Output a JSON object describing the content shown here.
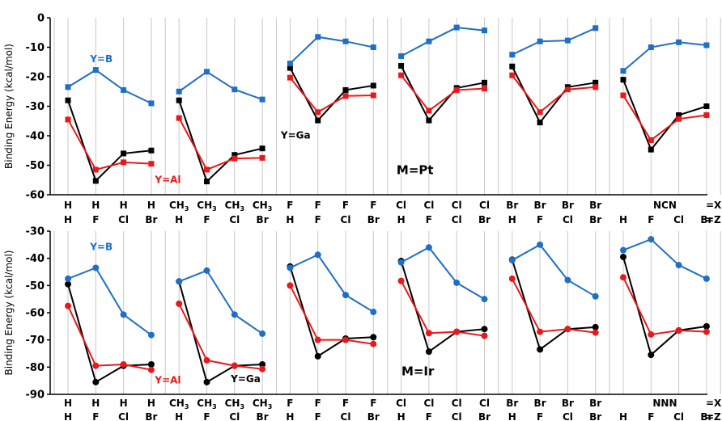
{
  "chart_data": [
    {
      "type": "line",
      "panel": "Pt",
      "ylabel": "Binding Energy (kcal/mol)",
      "ylim": [
        -60,
        0
      ],
      "yticks": [
        0,
        -10,
        -20,
        -30,
        -40,
        -50,
        -60
      ],
      "marker": "square",
      "label_text": "M=Pt",
      "label_pos": [
        12.5,
        -53
      ],
      "groups": [
        {
          "row1": [
            "H",
            "H",
            "H",
            "H"
          ],
          "row2": [
            "H",
            "F",
            "Cl",
            "Br"
          ]
        },
        {
          "row1": [
            "CH3",
            "CH3",
            "CH3",
            "CH3"
          ],
          "row2": [
            "H",
            "F",
            "Cl",
            "Br"
          ]
        },
        {
          "row1": [
            "F",
            "F",
            "F",
            "F"
          ],
          "row2": [
            "H",
            "F",
            "Cl",
            "Br"
          ]
        },
        {
          "row1": [
            "Cl",
            "Cl",
            "Cl",
            "Cl"
          ],
          "row2": [
            "H",
            "F",
            "Cl",
            "Br"
          ]
        },
        {
          "row1": [
            "Br",
            "Br",
            "Br",
            "Br"
          ],
          "row2": [
            "H",
            "F",
            "Cl",
            "Br"
          ]
        },
        {
          "row1": [
            "NCN"
          ],
          "row2": [
            "H",
            "F",
            "Cl",
            "Br"
          ]
        }
      ],
      "end_labels": [
        "=X",
        "=Z"
      ],
      "series": [
        {
          "name": "Y=B",
          "color": "#1f6fc5",
          "values": [
            [
              -23.5,
              -17.7,
              -24.5,
              -29
            ],
            [
              -25,
              -18.3,
              -24.3,
              -27.7
            ],
            [
              -15.5,
              -6.5,
              -8,
              -10
            ],
            [
              -13,
              -8,
              -3.3,
              -4.3
            ],
            [
              -12.5,
              -8,
              -7.7,
              -3.5
            ],
            [
              -18,
              -10,
              -8.3,
              -9.3
            ]
          ]
        },
        {
          "name": "Y=Al",
          "color": "#e8191b",
          "values": [
            [
              -34.5,
              -51.5,
              -49,
              -49.5
            ],
            [
              -34,
              -51.5,
              -47.7,
              -47.5
            ],
            [
              -20.3,
              -32,
              -26.5,
              -26.3
            ],
            [
              -19.5,
              -31.5,
              -24.5,
              -24
            ],
            [
              -19.5,
              -32,
              -24.3,
              -23.5
            ],
            [
              -26.3,
              -41.5,
              -34.3,
              -33
            ]
          ]
        },
        {
          "name": "Y=Ga",
          "color": "#000000",
          "values": [
            [
              -28,
              -55.3,
              -46,
              -45
            ],
            [
              -28,
              -55.5,
              -46.5,
              -44.3
            ],
            [
              -17,
              -34.8,
              -24.5,
              -23
            ],
            [
              -16.3,
              -34.8,
              -23.8,
              -22
            ],
            [
              -16.5,
              -35.5,
              -23.5,
              -22
            ],
            [
              -21,
              -44.7,
              -33,
              -30
            ]
          ]
        }
      ],
      "annotations": [
        {
          "text": "Y=B",
          "series": 0,
          "x": 1.2,
          "y": -15
        },
        {
          "text": "Y=Al",
          "series": 1,
          "x": 3.6,
          "y": -56
        },
        {
          "text": "Y=Ga",
          "series": 2,
          "x": 8.2,
          "y": -41
        }
      ]
    },
    {
      "type": "line",
      "panel": "Ir",
      "ylabel": "Binding Energy (kcal/mol)",
      "ylim": [
        -90,
        -30
      ],
      "yticks": [
        -30,
        -40,
        -50,
        -60,
        -70,
        -80,
        -90
      ],
      "marker": "circle",
      "label_text": "M=Ir",
      "label_pos": [
        12.6,
        -83
      ],
      "groups": [
        {
          "row1": [
            "H",
            "H",
            "H",
            "H"
          ],
          "row2": [
            "H",
            "F",
            "Cl",
            "Br"
          ]
        },
        {
          "row1": [
            "CH3",
            "CH3",
            "CH3",
            "CH3"
          ],
          "row2": [
            "H",
            "F",
            "Cl",
            "Br"
          ]
        },
        {
          "row1": [
            "F",
            "F",
            "F",
            "F"
          ],
          "row2": [
            "H",
            "F",
            "Cl",
            "Br"
          ]
        },
        {
          "row1": [
            "Cl",
            "Cl",
            "Cl",
            "Cl"
          ],
          "row2": [
            "H",
            "F",
            "Cl",
            "Br"
          ]
        },
        {
          "row1": [
            "Br",
            "Br",
            "Br",
            "Br"
          ],
          "row2": [
            "H",
            "F",
            "Cl",
            "Br"
          ]
        },
        {
          "row1": [
            "NNN"
          ],
          "row2": [
            "H",
            "F",
            "Cl",
            "Br"
          ]
        }
      ],
      "end_labels": [
        "=X",
        "=Z"
      ],
      "series": [
        {
          "name": "Y=B",
          "color": "#1f6fc5",
          "values": [
            [
              -47.5,
              -43.5,
              -60.7,
              -68.2
            ],
            [
              -48.5,
              -44.5,
              -60.7,
              -67.7
            ],
            [
              -43.5,
              -38.7,
              -53.5,
              -59.7
            ],
            [
              -41.5,
              -36,
              -49,
              -55
            ],
            [
              -40.7,
              -35,
              -48,
              -54
            ],
            [
              -37,
              -33,
              -42.5,
              -47.5
            ]
          ]
        },
        {
          "name": "Y=Al",
          "color": "#e8191b",
          "values": [
            [
              -57.5,
              -79.5,
              -79,
              -81
            ],
            [
              -56.7,
              -77.5,
              -79.5,
              -80.7
            ],
            [
              -50,
              -70,
              -70,
              -71.5
            ],
            [
              -48.3,
              -67.5,
              -67,
              -68.5
            ],
            [
              -47.5,
              -67,
              -66,
              -67.3
            ],
            [
              -47,
              -68,
              -66.5,
              -67
            ]
          ]
        },
        {
          "name": "Y=Ga",
          "color": "#000000",
          "values": [
            [
              -49.5,
              -85.5,
              -79.5,
              -79
            ],
            [
              -48.5,
              -85.5,
              -79.5,
              -79
            ],
            [
              -43,
              -76,
              -69.5,
              -69
            ],
            [
              -41,
              -74.3,
              -67,
              -66
            ],
            [
              -40.5,
              -73.5,
              -66,
              -65.3
            ],
            [
              -39.5,
              -75.5,
              -66.5,
              -65
            ]
          ]
        }
      ],
      "annotations": [
        {
          "text": "Y=B",
          "series": 0,
          "x": 1.2,
          "y": -37
        },
        {
          "text": "Y=Al",
          "series": 1,
          "x": 3.6,
          "y": -86
        },
        {
          "text": "Y=Ga",
          "series": 2,
          "x": 6.4,
          "y": -85.5
        }
      ]
    }
  ]
}
